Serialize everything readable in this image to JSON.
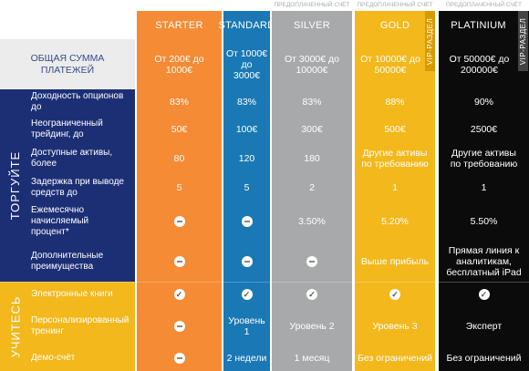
{
  "colors": {
    "starter": "#f58b35",
    "standard": "#1a78b4",
    "silver": "#a8a9ab",
    "gold": "#f2b81c",
    "platinium": "#0b0b0b",
    "navy": "#1c2f75",
    "orange_section": "#f2b81c"
  },
  "header": {
    "total_label": "ОБЩАЯ СУММА\nПЛАТЕЖЕЙ",
    "prepaid_silver": "ПРЕДОПЛАЧЕННЫЙ СЧЁТ",
    "prepaid_gold": "ПРЕДОПЛАЧЕННЫЙ СЧЁТ",
    "prepaid_platinium": "ПРЕДОПЛАЧЕННЫЙ СЧЁТ",
    "vip_gold": "VIP-РАЗДЕЛ",
    "vip_platinium": "VIP-РАЗДЕЛ"
  },
  "sections": {
    "trade": "ТОРГУЙТЕ",
    "learn": "УЧИТЕСЬ"
  },
  "plans": [
    {
      "name": "STARTER",
      "range": "От 200€ до\n1000€"
    },
    {
      "name": "STANDARD",
      "range": "От 1000€ до\n3000€"
    },
    {
      "name": "SILVER",
      "range": "От 3000€ до\n10000€"
    },
    {
      "name": "GOLD",
      "range": "От 10000€ до\n50000€"
    },
    {
      "name": "PLATINIUM",
      "range": "От 50000€ до\n200000€"
    }
  ],
  "rows": [
    {
      "label": "Доходность опционов\nдо",
      "values": [
        "83%",
        "83%",
        "83%",
        "88%",
        "90%"
      ]
    },
    {
      "label": "Неограниченный\nтрейдинг, до",
      "values": [
        "50€",
        "100€",
        "300€",
        "500€",
        "2500€"
      ]
    },
    {
      "label": "Доступные активы,\nболее",
      "values": [
        "80",
        "120",
        "180",
        "Другие активы\nпо требованию",
        "Другие активы\nпо требованию"
      ]
    },
    {
      "label": "Задержка при выводе\nсредств до",
      "values": [
        "5",
        "5",
        "2",
        "1",
        "1"
      ]
    },
    {
      "label": "Ежемесячно\nначисляемый\nпроцент*",
      "values": [
        "—",
        "—",
        "3.50%",
        "5.20%",
        "5.50%"
      ]
    },
    {
      "label": "Дополнительные\nпреимущества",
      "values": [
        "—",
        "—",
        "—",
        "Выше прибыль",
        "Прямая линия к\nаналитикам,\nбесплатный iPad"
      ]
    },
    {
      "label": "Электронные книги",
      "values": [
        "✓",
        "✓",
        "✓",
        "✓",
        "✓"
      ]
    },
    {
      "label": "Персонализированный\nтренинг",
      "values": [
        "—",
        "Уровень 1",
        "Уровень 2",
        "Уровень 3",
        "Эксперт"
      ]
    },
    {
      "label": "Демо-счёт",
      "values": [
        "—",
        "2 недели",
        "1 месяц",
        "Без ограничений",
        "Без ограничений"
      ]
    }
  ]
}
